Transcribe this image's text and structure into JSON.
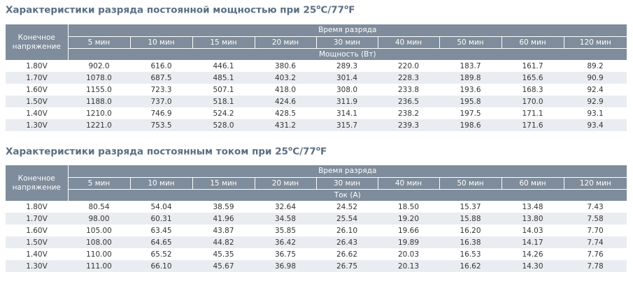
{
  "power_section": {
    "title_prefix": "Характеристики разряда постоянной мощностью при 25",
    "title_deg1": "o",
    "title_mid": "C/77",
    "title_deg2": "o",
    "title_suffix": "F",
    "corner_label_1": "Конечное",
    "corner_label_2": "напряжение",
    "group_header": "Время разряда",
    "unit_header": "Мощность (Вт)",
    "columns": [
      "5 мин",
      "10 мин",
      "15 мин",
      "20 мин",
      "30 мин",
      "40 мин",
      "50 мин",
      "60 мин",
      "120 мин"
    ],
    "rows": [
      {
        "voltage": "1.80V",
        "values": [
          "902.0",
          "616.0",
          "446.1",
          "380.6",
          "289.3",
          "220.0",
          "183.7",
          "161.7",
          "89.2"
        ]
      },
      {
        "voltage": "1.70V",
        "values": [
          "1078.0",
          "687.5",
          "485.1",
          "403.2",
          "301.4",
          "228.3",
          "189.8",
          "165.6",
          "90.9"
        ]
      },
      {
        "voltage": "1.60V",
        "values": [
          "1155.0",
          "723.3",
          "507.1",
          "418.0",
          "308.0",
          "233.8",
          "193.6",
          "168.3",
          "92.4"
        ]
      },
      {
        "voltage": "1.50V",
        "values": [
          "1188.0",
          "737.0",
          "518.1",
          "424.6",
          "311.9",
          "236.5",
          "195.8",
          "170.0",
          "92.9"
        ]
      },
      {
        "voltage": "1.40V",
        "values": [
          "1210.0",
          "746.9",
          "524.2",
          "428.5",
          "314.1",
          "238.2",
          "197.5",
          "171.1",
          "93.1"
        ]
      },
      {
        "voltage": "1.30V",
        "values": [
          "1221.0",
          "753.5",
          "528.0",
          "431.2",
          "315.7",
          "239.3",
          "198.6",
          "171.6",
          "93.4"
        ]
      }
    ]
  },
  "current_section": {
    "title_prefix": "Характеристики разряда постоянным током при 25",
    "title_deg1": "o",
    "title_mid": "C/77",
    "title_deg2": "o",
    "title_suffix": "F",
    "corner_label_1": "Конечное",
    "corner_label_2": "напряжение",
    "group_header": "Время разряда",
    "unit_header": "Ток (А)",
    "columns": [
      "5 мин",
      "10 мин",
      "15 мин",
      "20 мин",
      "30 мин",
      "40 мин",
      "50 мин",
      "60 мин",
      "120 мин"
    ],
    "rows": [
      {
        "voltage": "1.80V",
        "values": [
          "80.54",
          "54.04",
          "38.59",
          "32.64",
          "24.52",
          "18.50",
          "15.37",
          "13.48",
          "7.43"
        ]
      },
      {
        "voltage": "1.70V",
        "values": [
          "98.00",
          "60.31",
          "41.96",
          "34.58",
          "25.54",
          "19.20",
          "15.88",
          "13.80",
          "7.58"
        ]
      },
      {
        "voltage": "1.60V",
        "values": [
          "105.00",
          "63.45",
          "43.87",
          "35.85",
          "26.10",
          "19.66",
          "16.20",
          "14.03",
          "7.70"
        ]
      },
      {
        "voltage": "1.50V",
        "values": [
          "108.00",
          "64.65",
          "44.82",
          "36.42",
          "26.43",
          "19.89",
          "16.38",
          "14.17",
          "7.74"
        ]
      },
      {
        "voltage": "1.40V",
        "values": [
          "110.00",
          "65.52",
          "45.35",
          "36.75",
          "26.62",
          "20.03",
          "16.53",
          "14.26",
          "7.76"
        ]
      },
      {
        "voltage": "1.30V",
        "values": [
          "111.00",
          "66.10",
          "45.67",
          "36.98",
          "26.75",
          "20.13",
          "16.62",
          "14.30",
          "7.78"
        ]
      }
    ]
  },
  "colors": {
    "header_bg": "#7e8c9b",
    "title_text": "#5a6e82",
    "stripe_bg": "#e9edf1"
  }
}
